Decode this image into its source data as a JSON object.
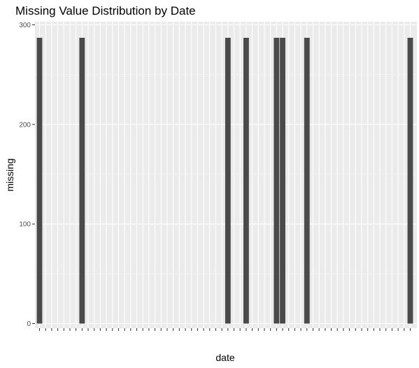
{
  "chart_data": {
    "type": "bar",
    "title": "Missing Value Distribution by Date",
    "xlabel": "date",
    "ylabel": "missing",
    "ylim": [
      0,
      300
    ],
    "yticks": [
      0,
      100,
      200,
      300
    ],
    "category_count": 62,
    "bar_value": 287,
    "bars_at_category_index": [
      0,
      7,
      31,
      34,
      39,
      40,
      44,
      61
    ],
    "x_tick_labels_legible": false,
    "grid": true,
    "colors": {
      "panel_background": "#ebebeb",
      "grid_major": "#ffffff",
      "bar_fill": "#4a4a4a",
      "tick_mark": "#333333"
    }
  }
}
